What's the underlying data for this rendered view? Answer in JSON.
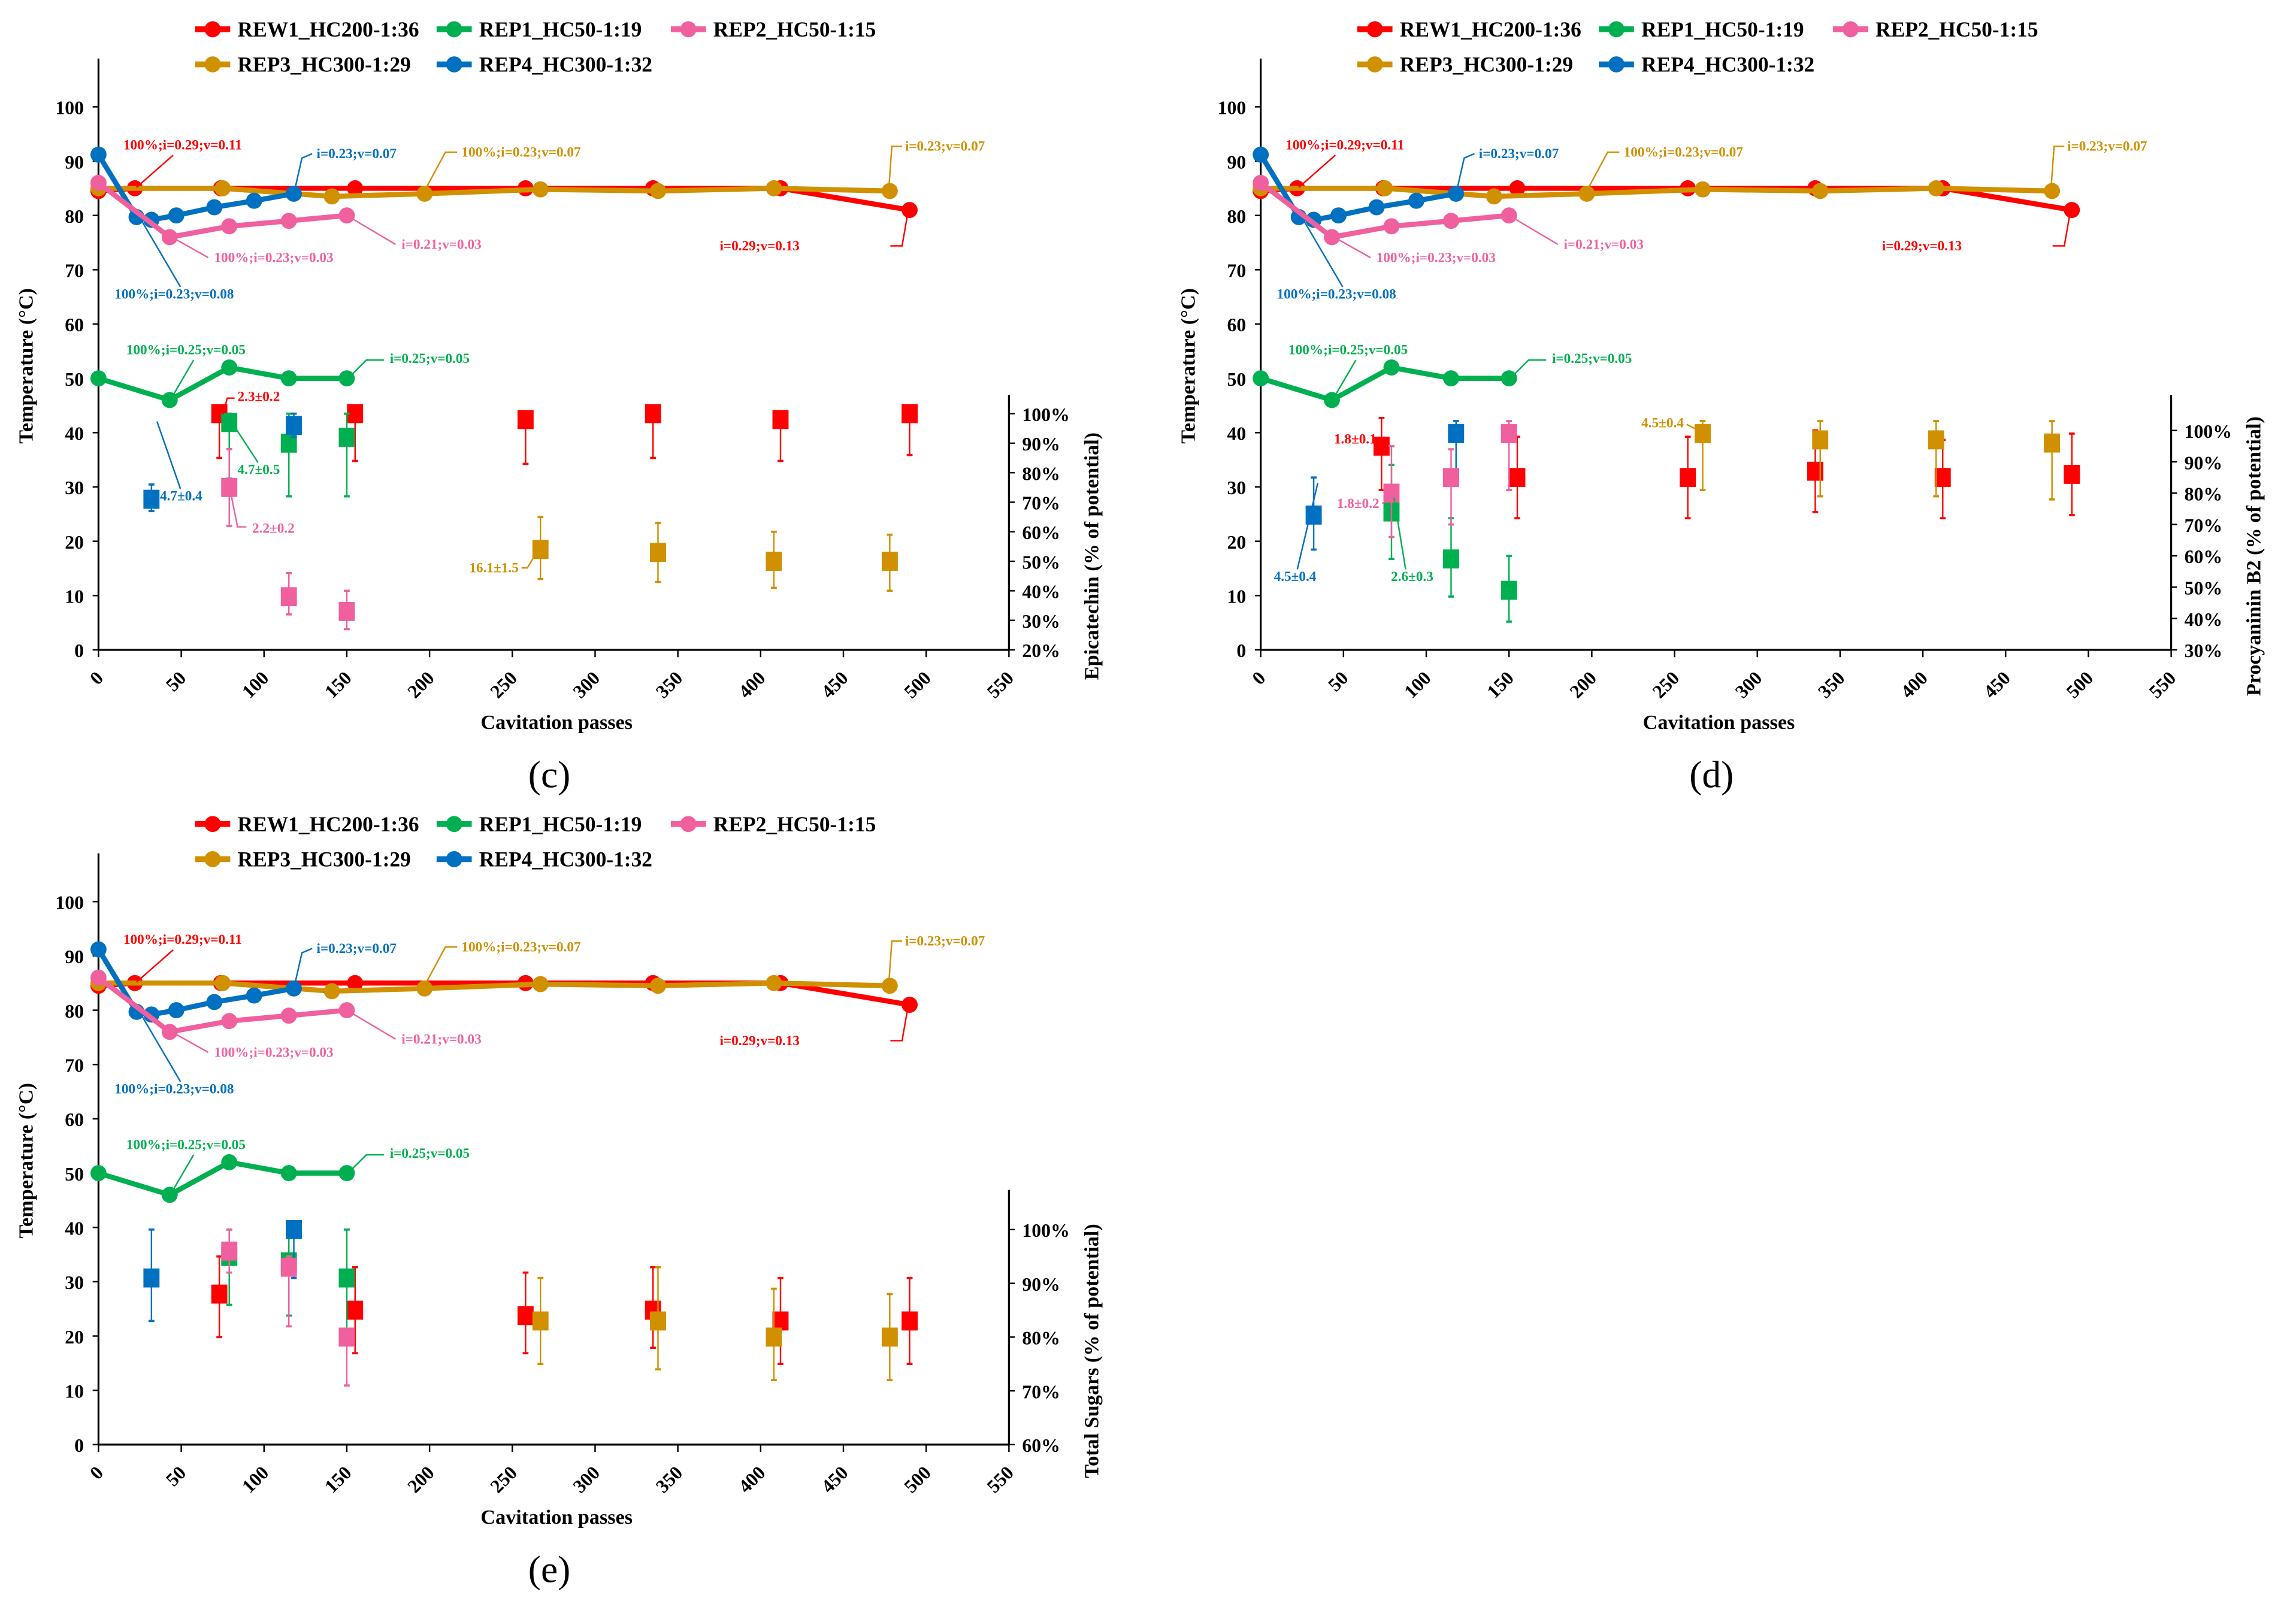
{
  "colors": {
    "REW1": "#ff0000",
    "REP1": "#00b050",
    "REP2": "#f0609e",
    "REP3": "#d09000",
    "REP4": "#0070c0"
  },
  "legend": [
    {
      "key": "REW1",
      "label": "REW1_HC200-1:36"
    },
    {
      "key": "REP1",
      "label": "REP1_HC50-1:19"
    },
    {
      "key": "REP2",
      "label": "REP2_HC50-1:15"
    },
    {
      "key": "REP3",
      "label": "REP3_HC300-1:29"
    },
    {
      "key": "REP4",
      "label": "REP4_HC300-1:32"
    }
  ],
  "line_annotations": [
    {
      "key": "REW1",
      "text": "100%;i=0.29;v=0.11"
    },
    {
      "key": "REP4",
      "text": "i=0.23;v=0.07"
    },
    {
      "key": "REP3",
      "text": "100%;i=0.23;v=0.07"
    },
    {
      "key": "REP3",
      "text": "i=0.23;v=0.07"
    },
    {
      "key": "REP2",
      "text": "100%;i=0.23;v=0.03"
    },
    {
      "key": "REP2",
      "text": "i=0.21;v=0.03"
    },
    {
      "key": "REP4",
      "text": "100%;i=0.23;v=0.08"
    },
    {
      "key": "REW1",
      "text": "i=0.29;v=0.13"
    },
    {
      "key": "REP1",
      "text": "100%;i=0.25;v=0.05"
    },
    {
      "key": "REP1",
      "text": "i=0.25;v=0.05"
    }
  ],
  "chart_data": [
    {
      "panel_label": "(c)",
      "type": "line+scatter",
      "xlabel": "Cavitation passes",
      "ylabel": "Temperature (°C)",
      "y2label": "Epicatechin (% of potential)",
      "xlim": [
        0,
        550
      ],
      "xticks": [
        "0",
        "50",
        "100",
        "150",
        "200",
        "250",
        "300",
        "350",
        "400",
        "450",
        "500",
        "550"
      ],
      "ylim": [
        0,
        100
      ],
      "yticks": [
        "0",
        "10",
        "20",
        "30",
        "40",
        "50",
        "60",
        "70",
        "80",
        "90",
        "100"
      ],
      "y2lim": [
        20,
        100
      ],
      "y2ticks": [
        "20%",
        "30%",
        "40%",
        "50%",
        "60%",
        "70%",
        "80%",
        "90%",
        "100%"
      ],
      "square_annotations": [
        {
          "key": "REW1",
          "text": "2.3±0.2"
        },
        {
          "key": "REP1",
          "text": "4.7±0.5"
        },
        {
          "key": "REP4",
          "text": "4.7±0.4"
        },
        {
          "key": "REP2",
          "text": "2.2±0.2"
        },
        {
          "key": "REP3",
          "text": "16.1±1.5"
        }
      ],
      "squares": {
        "REW1": [
          [
            73,
            100,
            85,
            100
          ],
          [
            155,
            100,
            84,
            100
          ],
          [
            258,
            98,
            83,
            100
          ],
          [
            335,
            100,
            85,
            100
          ],
          [
            412,
            98,
            84,
            100
          ],
          [
            490,
            100,
            86,
            100
          ]
        ],
        "REP1": [
          [
            79,
            97,
            78,
            100
          ],
          [
            115,
            90,
            72,
            100
          ],
          [
            150,
            92,
            72,
            100
          ]
        ],
        "REP4": [
          [
            32,
            71,
            67,
            76
          ],
          [
            118,
            96,
            92,
            100
          ]
        ],
        "REP2": [
          [
            79,
            75,
            62,
            88
          ],
          [
            115,
            38,
            32,
            46
          ],
          [
            150,
            33,
            27,
            40
          ]
        ],
        "REP3": [
          [
            267,
            54,
            44,
            65
          ],
          [
            338,
            53,
            43,
            63
          ],
          [
            408,
            50,
            41,
            60
          ],
          [
            478,
            50,
            40,
            59
          ]
        ]
      }
    },
    {
      "panel_label": "(d)",
      "type": "line+scatter",
      "xlabel": "Cavitation passes",
      "ylabel": "Temperature (°C)",
      "y2label": "Procyaninin B2 (% of potential)",
      "xlim": [
        0,
        550
      ],
      "xticks": [
        "0",
        "50",
        "100",
        "150",
        "200",
        "250",
        "300",
        "350",
        "400",
        "450",
        "500",
        "550"
      ],
      "ylim": [
        0,
        100
      ],
      "yticks": [
        "0",
        "10",
        "20",
        "30",
        "40",
        "50",
        "60",
        "70",
        "80",
        "90",
        "100"
      ],
      "y2lim": [
        30,
        100
      ],
      "y2ticks": [
        "30%",
        "40%",
        "50%",
        "60%",
        "70%",
        "80%",
        "90%",
        "100%"
      ],
      "square_annotations": [
        {
          "key": "REW1",
          "text": "1.8±0.1"
        },
        {
          "key": "REP2",
          "text": "1.8±0.2"
        },
        {
          "key": "REP4",
          "text": "4.5±0.4"
        },
        {
          "key": "REP1",
          "text": "2.6±0.3"
        },
        {
          "key": "REP3",
          "text": "4.5±0.4"
        }
      ],
      "squares": {
        "REW1": [
          [
            73,
            95,
            81,
            104
          ],
          [
            155,
            85,
            72,
            98
          ],
          [
            258,
            85,
            72,
            98
          ],
          [
            335,
            87,
            74,
            100
          ],
          [
            412,
            85,
            72,
            97
          ],
          [
            490,
            86,
            73,
            99
          ]
        ],
        "REP1": [
          [
            79,
            74,
            59,
            89
          ],
          [
            115,
            59,
            47,
            72
          ],
          [
            150,
            49,
            39,
            60
          ]
        ],
        "REP4": [
          [
            32,
            73,
            62,
            85
          ],
          [
            118,
            99,
            87,
            103
          ]
        ],
        "REP2": [
          [
            79,
            80,
            66,
            95
          ],
          [
            115,
            85,
            70,
            94
          ],
          [
            150,
            99,
            81,
            103
          ]
        ],
        "REP3": [
          [
            267,
            99,
            81,
            103
          ],
          [
            338,
            97,
            79,
            103
          ],
          [
            408,
            97,
            79,
            103
          ],
          [
            478,
            96,
            78,
            103
          ]
        ]
      }
    },
    {
      "panel_label": "(e)",
      "type": "line+scatter",
      "xlabel": "Cavitation passes",
      "ylabel": "Temperature (°C)",
      "y2label": "Total Sugars (% of potential)",
      "xlim": [
        0,
        550
      ],
      "xticks": [
        "0",
        "50",
        "100",
        "150",
        "200",
        "250",
        "300",
        "350",
        "400",
        "450",
        "500",
        "550"
      ],
      "ylim": [
        0,
        100
      ],
      "yticks": [
        "0",
        "10",
        "20",
        "30",
        "40",
        "50",
        "60",
        "70",
        "80",
        "90",
        "100"
      ],
      "y2lim": [
        60,
        100
      ],
      "y2ticks": [
        "60%",
        "70%",
        "80%",
        "90%",
        "100%"
      ],
      "square_annotations": [],
      "squares": {
        "REW1": [
          [
            73,
            88,
            80,
            95
          ],
          [
            155,
            85,
            77,
            93
          ],
          [
            258,
            84,
            77,
            92
          ],
          [
            335,
            85,
            78,
            93
          ],
          [
            412,
            83,
            75,
            91
          ],
          [
            490,
            83,
            75,
            91
          ]
        ],
        "REP1": [
          [
            79,
            95,
            86,
            100
          ],
          [
            115,
            94,
            84,
            99
          ],
          [
            150,
            91,
            81,
            100
          ]
        ],
        "REP4": [
          [
            32,
            91,
            83,
            100
          ],
          [
            118,
            100,
            91,
            100
          ]
        ],
        "REP2": [
          [
            79,
            96,
            92,
            100
          ],
          [
            115,
            93,
            82,
            95
          ],
          [
            150,
            80,
            71,
            81
          ]
        ],
        "REP3": [
          [
            267,
            83,
            75,
            91
          ],
          [
            338,
            83,
            74,
            93
          ],
          [
            408,
            80,
            72,
            89
          ],
          [
            478,
            80,
            72,
            88
          ]
        ]
      }
    }
  ],
  "temperature_series": {
    "REW1": [
      [
        0,
        84.5
      ],
      [
        22,
        85
      ],
      [
        74,
        85
      ],
      [
        155,
        85
      ],
      [
        258,
        85
      ],
      [
        335,
        85
      ],
      [
        412,
        85
      ],
      [
        490,
        81
      ]
    ],
    "REP3": [
      [
        0,
        85
      ],
      [
        75,
        85
      ],
      [
        141,
        83.5
      ],
      [
        197,
        84
      ],
      [
        267,
        84.8
      ],
      [
        338,
        84.5
      ],
      [
        408,
        85
      ],
      [
        478,
        84.5
      ]
    ],
    "REP4": [
      [
        0,
        91.2
      ],
      [
        23,
        79.7
      ],
      [
        32,
        79.2
      ],
      [
        47,
        80
      ],
      [
        70,
        81.5
      ],
      [
        94,
        82.7
      ],
      [
        118,
        84
      ]
    ],
    "REP2": [
      [
        0,
        86
      ],
      [
        43,
        76
      ],
      [
        79,
        78
      ],
      [
        115,
        79
      ],
      [
        150,
        80
      ]
    ],
    "REP1": [
      [
        0,
        50
      ],
      [
        43,
        46
      ],
      [
        79,
        52
      ],
      [
        115,
        50
      ],
      [
        150,
        50
      ]
    ]
  }
}
